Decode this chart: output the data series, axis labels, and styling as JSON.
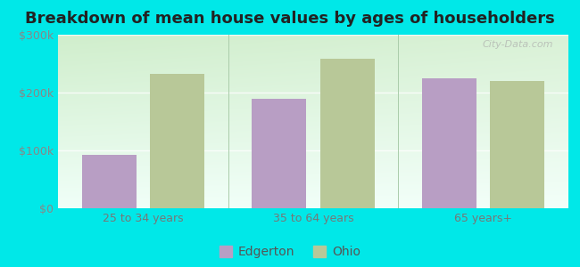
{
  "title": "Breakdown of mean house values by ages of householders",
  "categories": [
    "25 to 34 years",
    "35 to 64 years",
    "65 years+"
  ],
  "edgerton_values": [
    93000,
    190000,
    225000
  ],
  "ohio_values": [
    232000,
    258000,
    220000
  ],
  "bar_color_edgerton": "#b89ec4",
  "bar_color_ohio": "#b8c898",
  "background_outer": "#00e8e8",
  "ylim": [
    0,
    300000
  ],
  "yticks": [
    0,
    100000,
    200000,
    300000
  ],
  "ytick_labels": [
    "$0",
    "$100k",
    "$200k",
    "$300k"
  ],
  "legend_labels": [
    "Edgerton",
    "Ohio"
  ],
  "title_fontsize": 13,
  "tick_fontsize": 9,
  "legend_fontsize": 10,
  "bar_width": 0.32,
  "watermark": "City-Data.com"
}
